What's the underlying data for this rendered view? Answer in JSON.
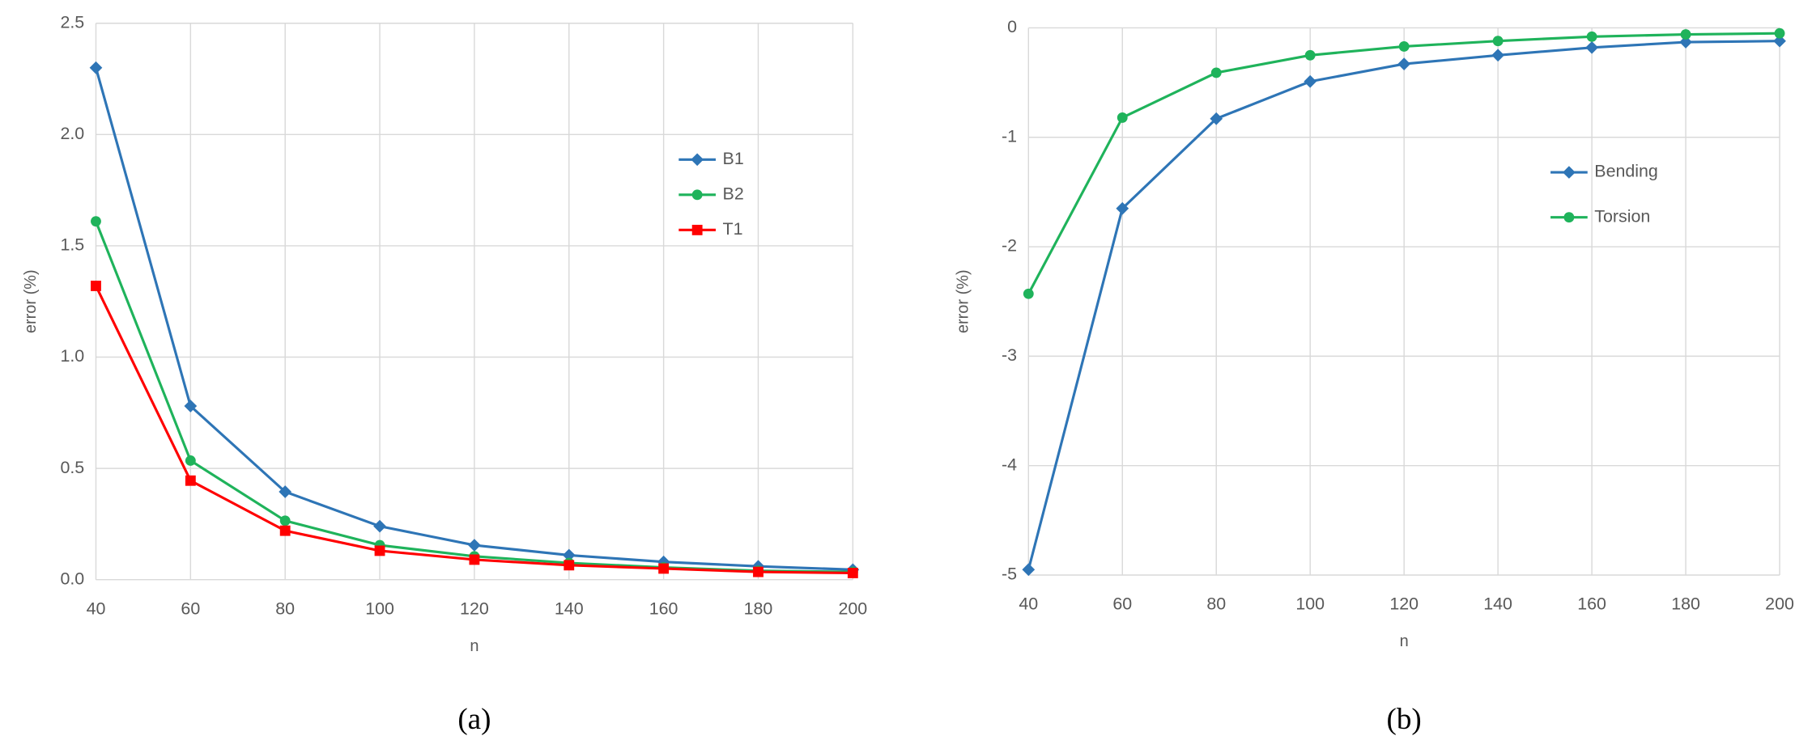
{
  "chart_data": [
    {
      "type": "line",
      "caption": "(a)",
      "xlabel": "n",
      "ylabel": "error (%)",
      "x": [
        40,
        60,
        80,
        100,
        120,
        140,
        160,
        180,
        200
      ],
      "xlim": [
        40,
        200
      ],
      "xticks": [
        40,
        60,
        80,
        100,
        120,
        140,
        160,
        180,
        200
      ],
      "ylim": [
        0,
        2.5
      ],
      "yticks": [
        {
          "value": 0,
          "label": "0.0"
        },
        0.5,
        {
          "value": 1,
          "label": "1.0"
        },
        1.5,
        {
          "value": 2,
          "label": "2.0"
        },
        2.5
      ],
      "grid": true,
      "legend_position": "upper-right",
      "series": [
        {
          "name": "B1",
          "color": "#2e75b6",
          "marker": "diamond",
          "values": [
            2.3,
            0.78,
            0.395,
            0.24,
            0.155,
            0.11,
            0.08,
            0.06,
            0.045
          ]
        },
        {
          "name": "B2",
          "color": "#1fb35b",
          "marker": "circle",
          "values": [
            1.61,
            0.535,
            0.265,
            0.155,
            0.105,
            0.075,
            0.055,
            0.04,
            0.035
          ]
        },
        {
          "name": "T1",
          "color": "#ff0000",
          "marker": "square",
          "values": [
            1.32,
            0.445,
            0.22,
            0.13,
            0.09,
            0.065,
            0.05,
            0.035,
            0.03
          ]
        }
      ]
    },
    {
      "type": "line",
      "caption": "(b)",
      "xlabel": "n",
      "ylabel": "error (%)",
      "x": [
        40,
        60,
        80,
        100,
        120,
        140,
        160,
        180,
        200
      ],
      "xlim": [
        40,
        200
      ],
      "xticks": [
        40,
        60,
        80,
        100,
        120,
        140,
        160,
        180,
        200
      ],
      "ylim": [
        -5,
        0
      ],
      "yticks": [
        -5,
        -4,
        -3,
        -2,
        -1,
        0
      ],
      "grid": true,
      "legend_position": "center-right",
      "series": [
        {
          "name": "Bending",
          "color": "#2e75b6",
          "marker": "diamond",
          "values": [
            -4.95,
            -1.65,
            -0.83,
            -0.49,
            -0.33,
            -0.25,
            -0.18,
            -0.13,
            -0.12
          ]
        },
        {
          "name": "Torsion",
          "color": "#1fb35b",
          "marker": "circle",
          "values": [
            -2.43,
            -0.82,
            -0.41,
            -0.25,
            -0.17,
            -0.12,
            -0.08,
            -0.06,
            -0.05
          ]
        }
      ]
    }
  ]
}
